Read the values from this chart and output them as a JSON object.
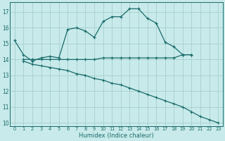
{
  "xlabel": "Humidex (Indice chaleur)",
  "bg_color": "#c8eaea",
  "grid_color": "#a0c8c8",
  "line_color": "#1a6b6b",
  "marker": "+",
  "xlim": [
    -0.5,
    23.5
  ],
  "ylim": [
    9.8,
    17.6
  ],
  "xticks": [
    0,
    1,
    2,
    3,
    4,
    5,
    6,
    7,
    8,
    9,
    10,
    11,
    12,
    13,
    14,
    15,
    16,
    17,
    18,
    19,
    20,
    21,
    22,
    23
  ],
  "yticks": [
    10,
    11,
    12,
    13,
    14,
    15,
    16,
    17
  ],
  "line1_x": [
    0,
    1,
    2,
    3,
    4,
    5,
    6,
    7,
    8,
    9,
    10,
    11,
    12,
    13,
    14,
    15,
    16,
    17,
    18,
    19,
    20
  ],
  "line1_y": [
    15.2,
    14.3,
    13.9,
    14.1,
    14.2,
    14.1,
    15.9,
    16.0,
    15.8,
    15.4,
    16.4,
    16.7,
    16.7,
    17.2,
    17.2,
    16.6,
    16.3,
    15.1,
    14.8,
    14.3,
    14.3
  ],
  "line2_x": [
    1,
    2,
    3,
    4,
    5,
    6,
    7,
    8,
    9,
    10,
    11,
    12,
    13,
    14,
    15,
    16,
    17,
    18,
    19,
    20
  ],
  "line2_y": [
    14.0,
    14.0,
    14.0,
    14.0,
    14.0,
    14.0,
    14.0,
    14.0,
    14.0,
    14.1,
    14.1,
    14.1,
    14.1,
    14.1,
    14.1,
    14.1,
    14.1,
    14.1,
    14.3,
    14.3
  ],
  "line3_x": [
    1,
    2,
    3,
    4,
    5,
    6,
    7,
    8,
    9,
    10,
    11,
    12,
    13,
    14,
    15,
    16,
    17,
    18,
    19,
    20,
    21,
    22,
    23
  ],
  "line3_y": [
    13.9,
    13.7,
    13.6,
    13.5,
    13.4,
    13.3,
    13.1,
    13.0,
    12.8,
    12.7,
    12.5,
    12.4,
    12.2,
    12.0,
    11.8,
    11.6,
    11.4,
    11.2,
    11.0,
    10.7,
    10.4,
    10.2,
    10.0
  ]
}
